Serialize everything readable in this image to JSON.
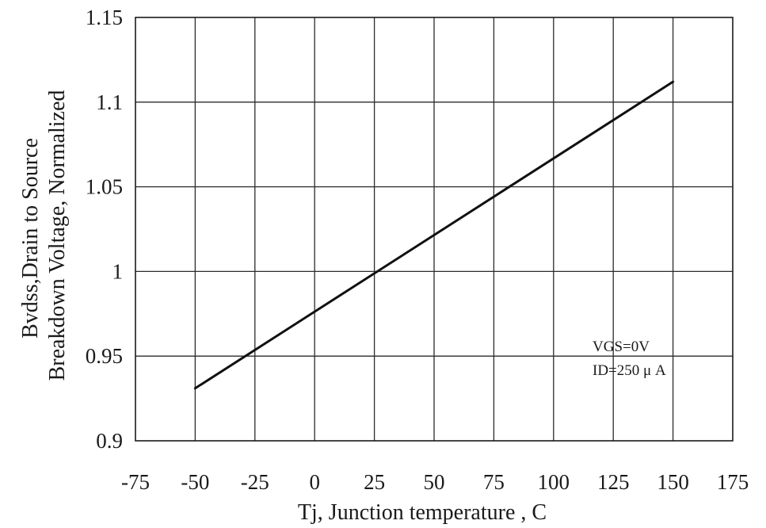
{
  "chart_data": {
    "type": "line",
    "xlabel": "Tj, Junction temperature , C",
    "ylabel_lines": [
      "Bvdss,Drain to Source",
      "Breakdown Voltage, Normalized"
    ],
    "xlim": [
      -75,
      175
    ],
    "ylim": [
      0.9,
      1.15
    ],
    "x_ticks": [
      -75,
      -50,
      -25,
      0,
      25,
      50,
      75,
      100,
      125,
      150,
      175
    ],
    "x_tick_labels": [
      "-75",
      "-50",
      "-25",
      "0",
      "25",
      "50",
      "75",
      "100",
      "125",
      "150",
      "175"
    ],
    "y_ticks": [
      0.9,
      0.95,
      1.0,
      1.05,
      1.1,
      1.15
    ],
    "y_tick_labels": [
      "0.9",
      "0.95",
      "1",
      "1.05",
      "1.1",
      "1.15"
    ],
    "grid": true,
    "series": [
      {
        "color": "#111111",
        "x": [
          -50,
          150
        ],
        "y": [
          0.931,
          1.112
        ]
      }
    ],
    "annotation": {
      "lines": [
        "VGS=0V",
        "ID=250 μ A"
      ],
      "position": "bottom-right"
    }
  }
}
